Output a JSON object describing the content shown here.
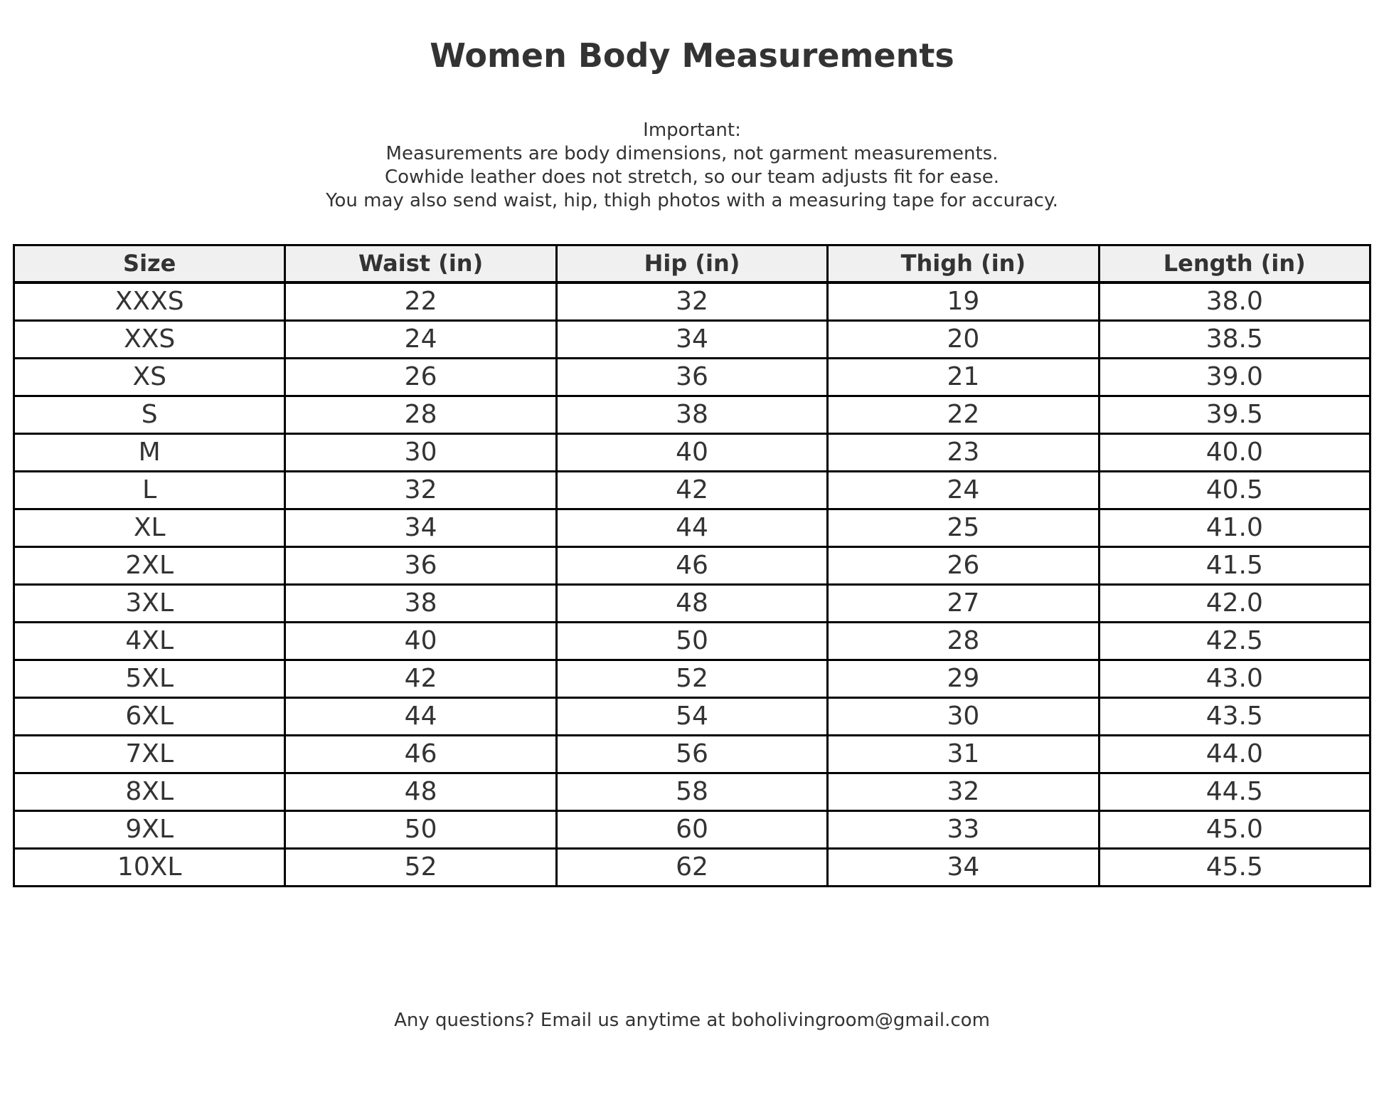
{
  "page": {
    "background_color": "#ffffff",
    "text_color": "#333333"
  },
  "title": "Women Body Measurements",
  "notes": {
    "heading": "Important:",
    "lines": [
      "Measurements are body dimensions, not garment measurements.",
      "Cowhide leather does not stretch, so our team adjusts fit for ease.",
      "You may also send waist, hip, thigh photos with a measuring tape for accuracy."
    ]
  },
  "table": {
    "header_bg": "#f0f0f0",
    "border_color": "#000000",
    "headers": [
      "Size",
      "Waist (in)",
      "Hip (in)",
      "Thigh (in)",
      "Length (in)"
    ],
    "rows": [
      [
        "XXXS",
        "22",
        "32",
        "19",
        "38.0"
      ],
      [
        "XXS",
        "24",
        "34",
        "20",
        "38.5"
      ],
      [
        "XS",
        "26",
        "36",
        "21",
        "39.0"
      ],
      [
        "S",
        "28",
        "38",
        "22",
        "39.5"
      ],
      [
        "M",
        "30",
        "40",
        "23",
        "40.0"
      ],
      [
        "L",
        "32",
        "42",
        "24",
        "40.5"
      ],
      [
        "XL",
        "34",
        "44",
        "25",
        "41.0"
      ],
      [
        "2XL",
        "36",
        "46",
        "26",
        "41.5"
      ],
      [
        "3XL",
        "38",
        "48",
        "27",
        "42.0"
      ],
      [
        "4XL",
        "40",
        "50",
        "28",
        "42.5"
      ],
      [
        "5XL",
        "42",
        "52",
        "29",
        "43.0"
      ],
      [
        "6XL",
        "44",
        "54",
        "30",
        "43.5"
      ],
      [
        "7XL",
        "46",
        "56",
        "31",
        "44.0"
      ],
      [
        "8XL",
        "48",
        "58",
        "32",
        "44.5"
      ],
      [
        "9XL",
        "50",
        "60",
        "33",
        "45.0"
      ],
      [
        "10XL",
        "52",
        "62",
        "34",
        "45.5"
      ]
    ]
  },
  "footer": "Any questions? Email us anytime at boholivingroom@gmail.com"
}
